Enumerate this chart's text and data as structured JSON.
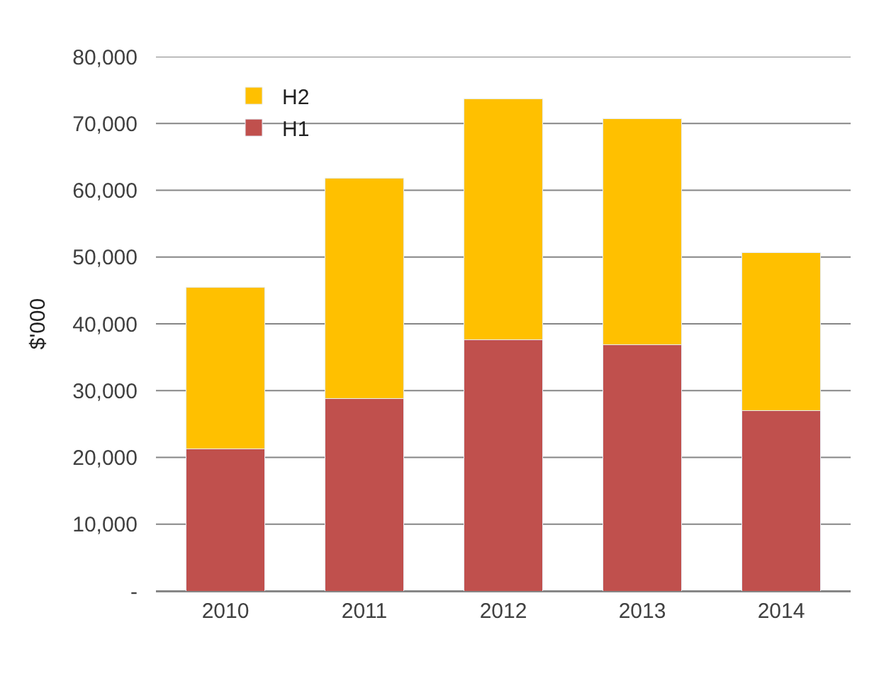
{
  "chart_data": {
    "type": "bar",
    "stacked": true,
    "ylabel": "$'000",
    "categories": [
      "2010",
      "2011",
      "2012",
      "2013",
      "2014"
    ],
    "series": [
      {
        "name": "H1",
        "color": "#c0504d",
        "values": [
          21300,
          28800,
          37600,
          36900,
          27000
        ]
      },
      {
        "name": "H2",
        "color": "#ffc000",
        "values": [
          24200,
          33000,
          36100,
          33800,
          23700
        ]
      }
    ],
    "ylim": [
      0,
      80000
    ],
    "yticks": [
      {
        "value": 0,
        "label": "-"
      },
      {
        "value": 10000,
        "label": "10,000"
      },
      {
        "value": 20000,
        "label": "20,000"
      },
      {
        "value": 30000,
        "label": "30,000"
      },
      {
        "value": 40000,
        "label": "40,000"
      },
      {
        "value": 50000,
        "label": "50,000"
      },
      {
        "value": 60000,
        "label": "60,000"
      },
      {
        "value": 70000,
        "label": "70,000"
      },
      {
        "value": 80000,
        "label": "80,000"
      }
    ],
    "grid": "y",
    "legend": "top left"
  }
}
